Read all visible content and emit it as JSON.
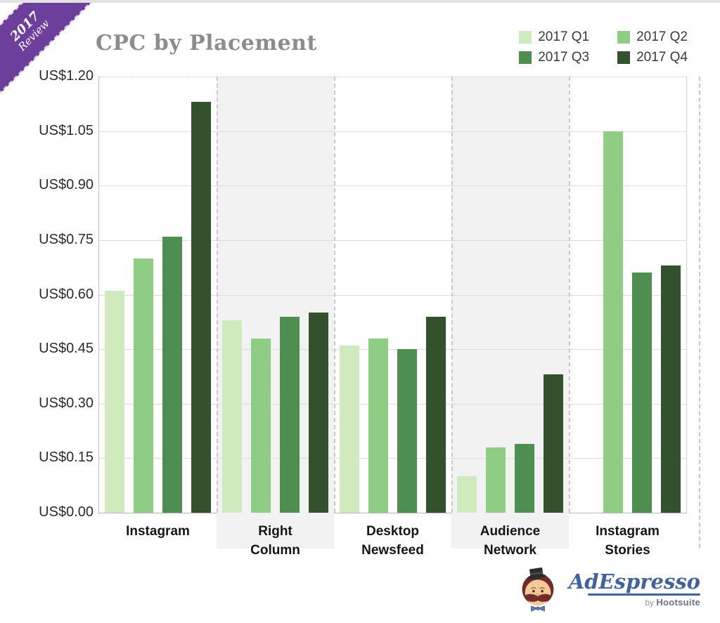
{
  "ribbon": {
    "year": "2017",
    "word": "Review",
    "color": "#6b3f9b"
  },
  "header": {
    "title": "CPC by Placement",
    "title_color": "#8c8c8c"
  },
  "legend": {
    "items": [
      {
        "label": "2017 Q1",
        "color": "#cfeabd"
      },
      {
        "label": "2017 Q2",
        "color": "#8fcc84"
      },
      {
        "label": "2017 Q3",
        "color": "#4e8e51"
      },
      {
        "label": "2017 Q4",
        "color": "#34512e"
      }
    ]
  },
  "chart_data": {
    "type": "bar",
    "title": "CPC by Placement",
    "categories": [
      "Instagram",
      "Right Column",
      "Desktop Newsfeed",
      "Audience Network",
      "Instagram Stories"
    ],
    "category_label_lines": [
      [
        "Instagram"
      ],
      [
        "Right",
        "Column"
      ],
      [
        "Desktop",
        "Newsfeed"
      ],
      [
        "Audience",
        "Network"
      ],
      [
        "Instagram",
        "Stories"
      ]
    ],
    "series": [
      {
        "name": "2017 Q1",
        "color": "#cfeabd",
        "values": [
          0.61,
          0.53,
          0.46,
          0.1,
          null
        ]
      },
      {
        "name": "2017 Q2",
        "color": "#8fcc84",
        "values": [
          0.7,
          0.48,
          0.48,
          0.18,
          1.05
        ]
      },
      {
        "name": "2017 Q3",
        "color": "#4e8e51",
        "values": [
          0.76,
          0.54,
          0.45,
          0.19,
          0.66
        ]
      },
      {
        "name": "2017 Q4",
        "color": "#34512e",
        "values": [
          1.13,
          0.55,
          0.54,
          0.38,
          0.68
        ]
      }
    ],
    "xlabel": "",
    "ylabel": "",
    "ylim": [
      0,
      1.2
    ],
    "ytick_step": 0.15,
    "yticks": [
      "US$0.00",
      "US$0.15",
      "US$0.30",
      "US$0.45",
      "US$0.60",
      "US$0.75",
      "US$0.90",
      "US$1.05",
      "US$1.20"
    ],
    "currency_prefix": "US$",
    "grid": true,
    "legend_position": "top-right",
    "shaded_group_indexes": [
      1,
      3
    ],
    "shaded_color": "#f2f2f2"
  },
  "footer_logo": {
    "brand": "AdEspresso",
    "byline_prefix": "by",
    "byline_brand": "Hootsuite",
    "brand_color": "#41629e"
  }
}
